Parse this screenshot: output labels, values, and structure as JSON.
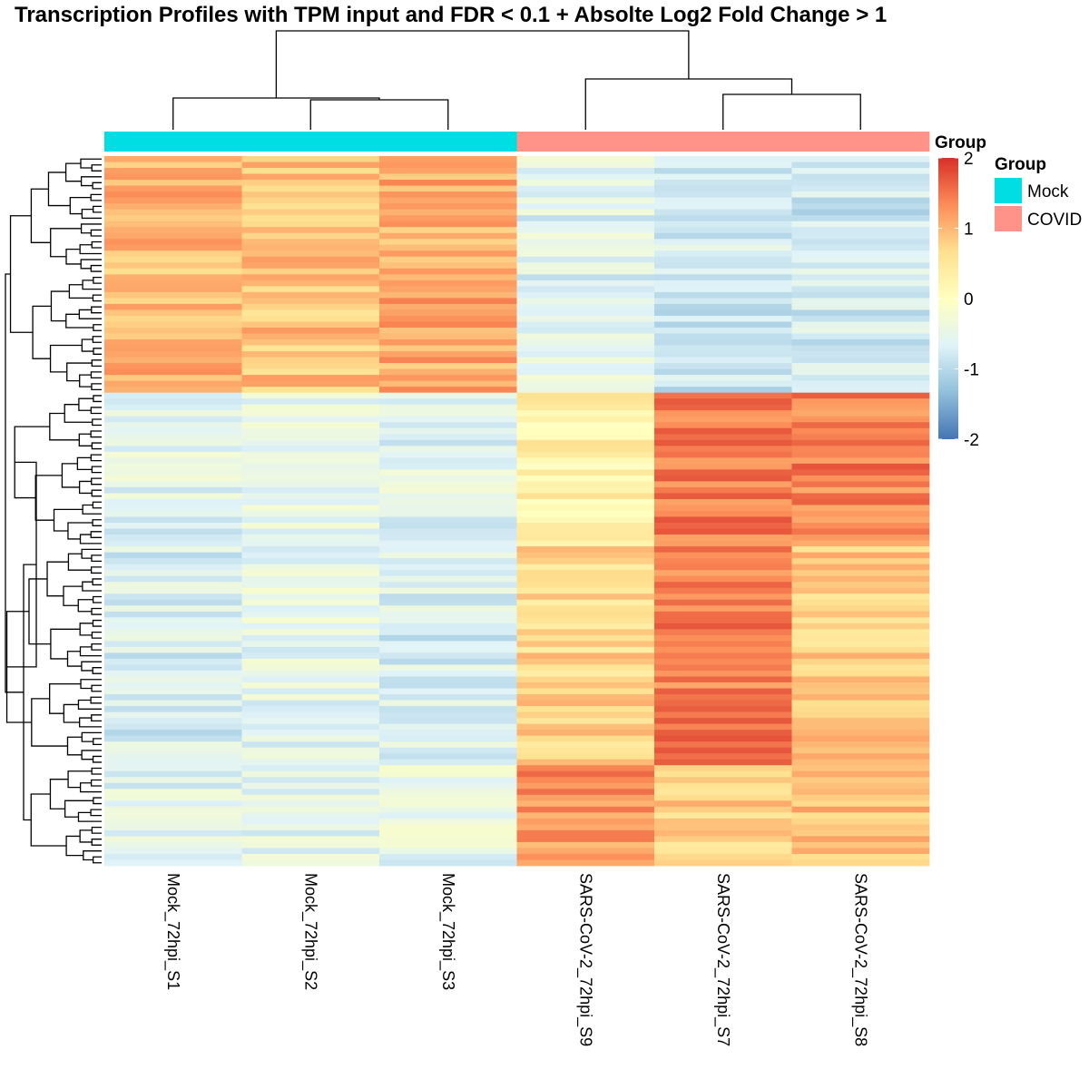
{
  "chart_data": {
    "type": "heatmap",
    "title": "Transcription Profiles with TPM input and FDR < 0.1 + Absolte Log2 Fold Change > 1",
    "columns": [
      "Mock_72hpi_S1",
      "Mock_72hpi_S2",
      "Mock_72hpi_S3",
      "SARS-CoV-2_72hpi_S9",
      "SARS-CoV-2_72hpi_S7",
      "SARS-CoV-2_72hpi_S8"
    ],
    "column_groups": [
      "Mock",
      "Mock",
      "Mock",
      "COVID",
      "COVID",
      "COVID"
    ],
    "annotation": {
      "label": "Group",
      "legend_title": "Group",
      "levels": [
        {
          "name": "Mock",
          "color": "#00DDE3"
        },
        {
          "name": "COVID",
          "color": "#FF9289"
        }
      ]
    },
    "color_scale": {
      "ticks": [
        "2",
        "1",
        "0",
        "-1",
        "-2"
      ],
      "range": [
        -2,
        2
      ],
      "stops": [
        "#4575B4",
        "#91BFDB",
        "#E0F3F8",
        "#FFFFBF",
        "#FEE090",
        "#FC8D59",
        "#D73027"
      ]
    },
    "n_rows": 120,
    "row_blocks": [
      {
        "rows": 40,
        "means": [
          1.0,
          0.9,
          1.1,
          -0.6,
          -0.8,
          -0.8
        ]
      },
      {
        "rows": 26,
        "means": [
          -0.6,
          -0.5,
          -0.6,
          0.3,
          1.5,
          1.4
        ]
      },
      {
        "rows": 37,
        "means": [
          -0.7,
          -0.5,
          -0.7,
          0.7,
          1.4,
          0.8
        ]
      },
      {
        "rows": 17,
        "means": [
          -0.6,
          -0.5,
          -0.5,
          1.3,
          0.8,
          0.9
        ]
      }
    ],
    "row_dendrogram": true,
    "column_dendrogram": true
  }
}
